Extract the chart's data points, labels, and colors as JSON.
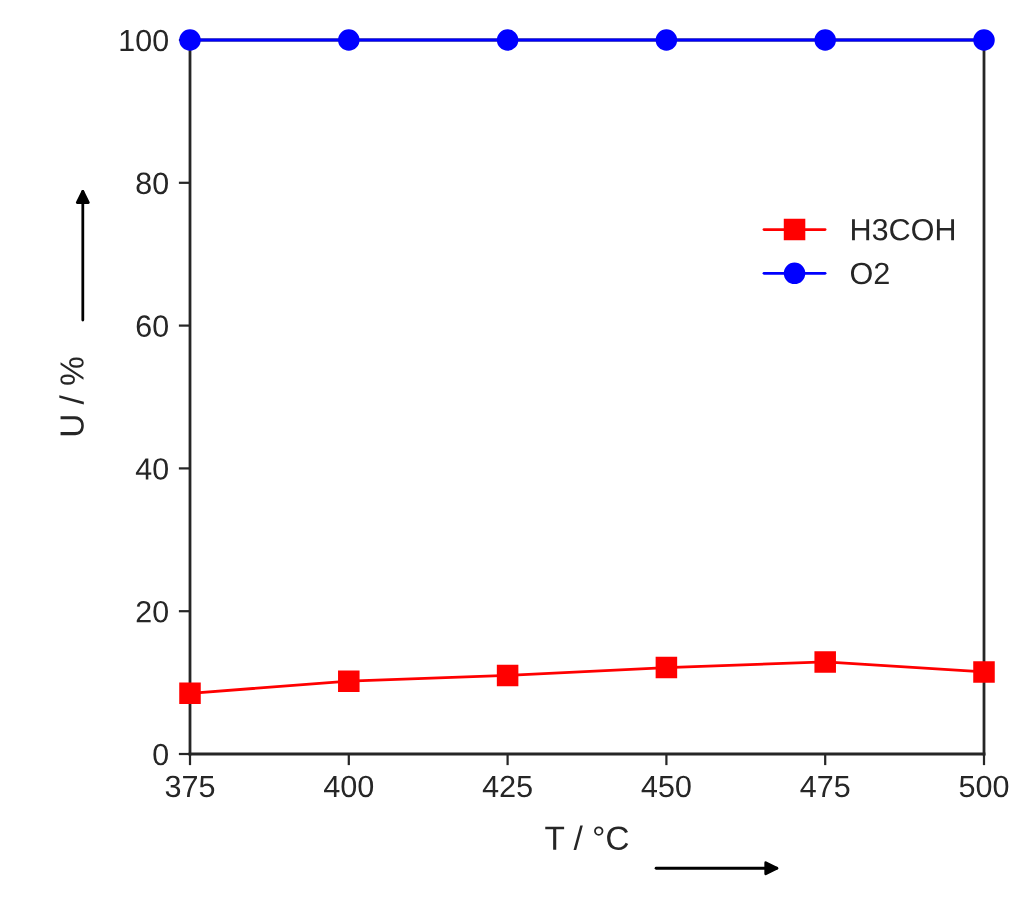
{
  "chart_data": {
    "type": "line",
    "xlabel": "T / °C",
    "ylabel": "U / %",
    "x": [
      375,
      400,
      425,
      450,
      475,
      500
    ],
    "series": [
      {
        "name": "H3COH",
        "color": "#ff0000",
        "marker": "square",
        "values": [
          8.5,
          10.2,
          11.0,
          12.1,
          12.9,
          11.5
        ]
      },
      {
        "name": "O2",
        "color": "#0000ff",
        "marker": "circle",
        "values": [
          100,
          100,
          100,
          100,
          100,
          100
        ]
      }
    ],
    "xlim": [
      375,
      500
    ],
    "xticks": [
      375,
      400,
      425,
      450,
      475,
      500
    ],
    "ylim": [
      0,
      100
    ],
    "yticks": [
      0,
      20,
      40,
      60,
      80,
      100
    ],
    "grid": false,
    "legend": "right",
    "line_style": "solid"
  }
}
